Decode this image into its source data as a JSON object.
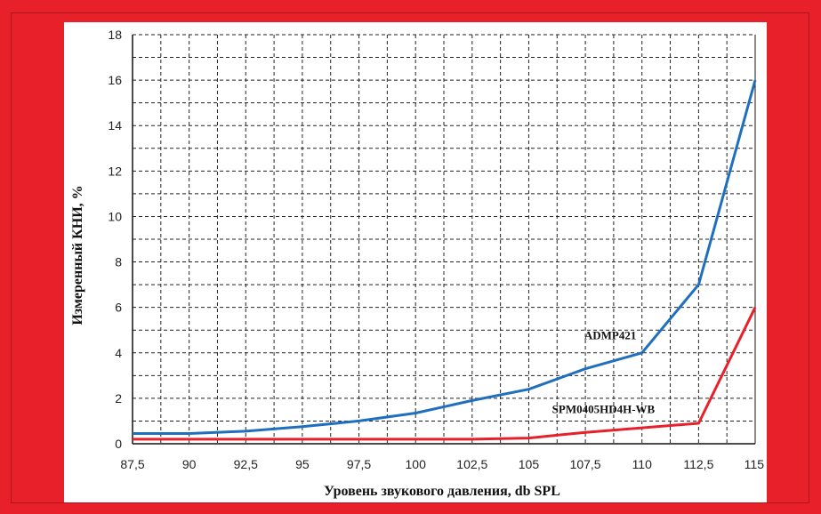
{
  "chart_data": {
    "type": "line",
    "xlabel": "Уровень звукового давления, db SPL",
    "ylabel": "Измеренный КНИ, %",
    "x_tick_labels": [
      "87,5",
      "90",
      "92,5",
      "95",
      "97,5",
      "100",
      "102,5",
      "105",
      "107,5",
      "110",
      "112,5",
      "115"
    ],
    "x_ticks": [
      87.5,
      90,
      92.5,
      95,
      97.5,
      100,
      102.5,
      105,
      107.5,
      110,
      112.5,
      115
    ],
    "y_tick_labels": [
      "0",
      "2",
      "4",
      "6",
      "8",
      "10",
      "12",
      "14",
      "16",
      "18"
    ],
    "y_ticks": [
      0,
      2,
      4,
      6,
      8,
      10,
      12,
      14,
      16,
      18
    ],
    "xlim": [
      87.5,
      115
    ],
    "ylim": [
      0,
      18
    ],
    "grid": true,
    "grid_x_step": 1.25,
    "grid_y_step": 1,
    "series": [
      {
        "name": "ADMP421",
        "color": "#1f6fbf",
        "x": [
          87.5,
          90,
          92.5,
          95,
          97.5,
          100,
          102.5,
          105,
          107.5,
          110,
          112.5,
          115
        ],
        "y": [
          0.45,
          0.45,
          0.55,
          0.75,
          1.0,
          1.35,
          1.9,
          2.4,
          3.3,
          4.0,
          7.0,
          16.0
        ]
      },
      {
        "name": "SPM0405HD4H-WB",
        "color": "#e8202a",
        "x": [
          87.5,
          90,
          92.5,
          95,
          97.5,
          100,
          102.5,
          105,
          107.5,
          110,
          112.5,
          115
        ],
        "y": [
          0.2,
          0.2,
          0.2,
          0.2,
          0.2,
          0.2,
          0.2,
          0.25,
          0.5,
          0.7,
          0.9,
          6.0
        ]
      }
    ]
  }
}
